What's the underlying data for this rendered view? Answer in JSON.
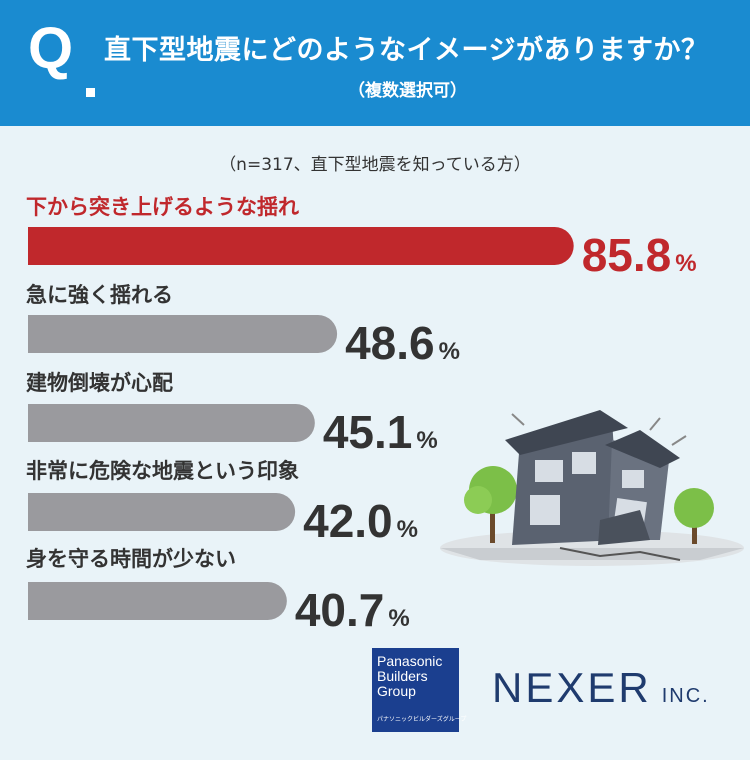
{
  "header": {
    "q_mark": "Q",
    "title": "直下型地震にどのようなイメージがありますか？",
    "subtitle": "（複数選択可）"
  },
  "note": "（n=317、直下型地震を知っている方）",
  "chart_data": {
    "type": "bar",
    "orientation": "horizontal",
    "unit": "%",
    "categories": [
      "下から突き上げるような揺れ",
      "急に強く揺れる",
      "建物倒壊が心配",
      "非常に危険な地震という印象",
      "身を守る時間が少ない"
    ],
    "values": [
      85.8,
      48.6,
      45.1,
      42.0,
      40.7
    ],
    "value_labels": [
      "85.8",
      "48.6",
      "45.1",
      "42.0",
      "40.7"
    ],
    "highlight_index": 0,
    "colors": {
      "highlight": "#c0282c",
      "default": "#9a9a9e",
      "label": "#333333",
      "value": "#333333"
    },
    "xlim": [
      0,
      100
    ]
  },
  "logos": {
    "pbg_lines": [
      "Panasonic",
      "Builders",
      "Group",
      "パナソニックビルダーズグループ"
    ],
    "nexer": "NEXER",
    "nexer_suffix": "INC."
  },
  "illustration": {
    "icon": "collapsed-house-illustration"
  }
}
